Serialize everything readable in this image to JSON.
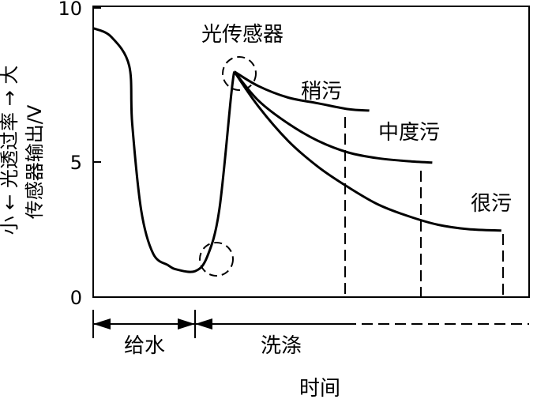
{
  "chart_data": {
    "type": "line",
    "title": "",
    "xlabel": "时间",
    "ylabel_main": "传感器输出/V",
    "ylabel_aux": "小 ← 光透过率 → 大",
    "ylim": [
      0,
      10
    ],
    "yticks": [
      0,
      5,
      10
    ],
    "grid": false,
    "common_curve": {
      "x": [
        0,
        0.06,
        0.12,
        0.13,
        0.16,
        0.2,
        0.25,
        0.28,
        0.34,
        0.38,
        0.42,
        0.46,
        0.47
      ],
      "y": [
        9.3,
        9.0,
        8.0,
        6.0,
        3.0,
        1.5,
        1.1,
        0.95,
        0.9,
        1.4,
        3.0,
        7.0,
        7.8
      ]
    },
    "series": [
      {
        "name": "稍污",
        "x": [
          0.47,
          0.55,
          0.65,
          0.75,
          0.85,
          0.92
        ],
        "y": [
          7.8,
          7.3,
          6.9,
          6.7,
          6.5,
          6.45
        ],
        "end_x": 0.92
      },
      {
        "name": "中度污",
        "x": [
          0.47,
          0.55,
          0.65,
          0.75,
          0.85,
          0.95,
          1.05,
          1.13
        ],
        "y": [
          7.8,
          6.8,
          6.0,
          5.4,
          5.0,
          4.8,
          4.7,
          4.65
        ],
        "end_x": 1.13
      },
      {
        "name": "很污",
        "x": [
          0.47,
          0.55,
          0.65,
          0.75,
          0.85,
          0.95,
          1.05,
          1.15,
          1.25,
          1.36
        ],
        "y": [
          7.8,
          6.6,
          5.4,
          4.5,
          3.8,
          3.2,
          2.8,
          2.5,
          2.35,
          2.3
        ],
        "end_x": 1.36
      }
    ],
    "annotations": {
      "sensor_label": "光传感器"
    },
    "phases": [
      {
        "label": "给水"
      },
      {
        "label": "洗涤"
      }
    ]
  }
}
